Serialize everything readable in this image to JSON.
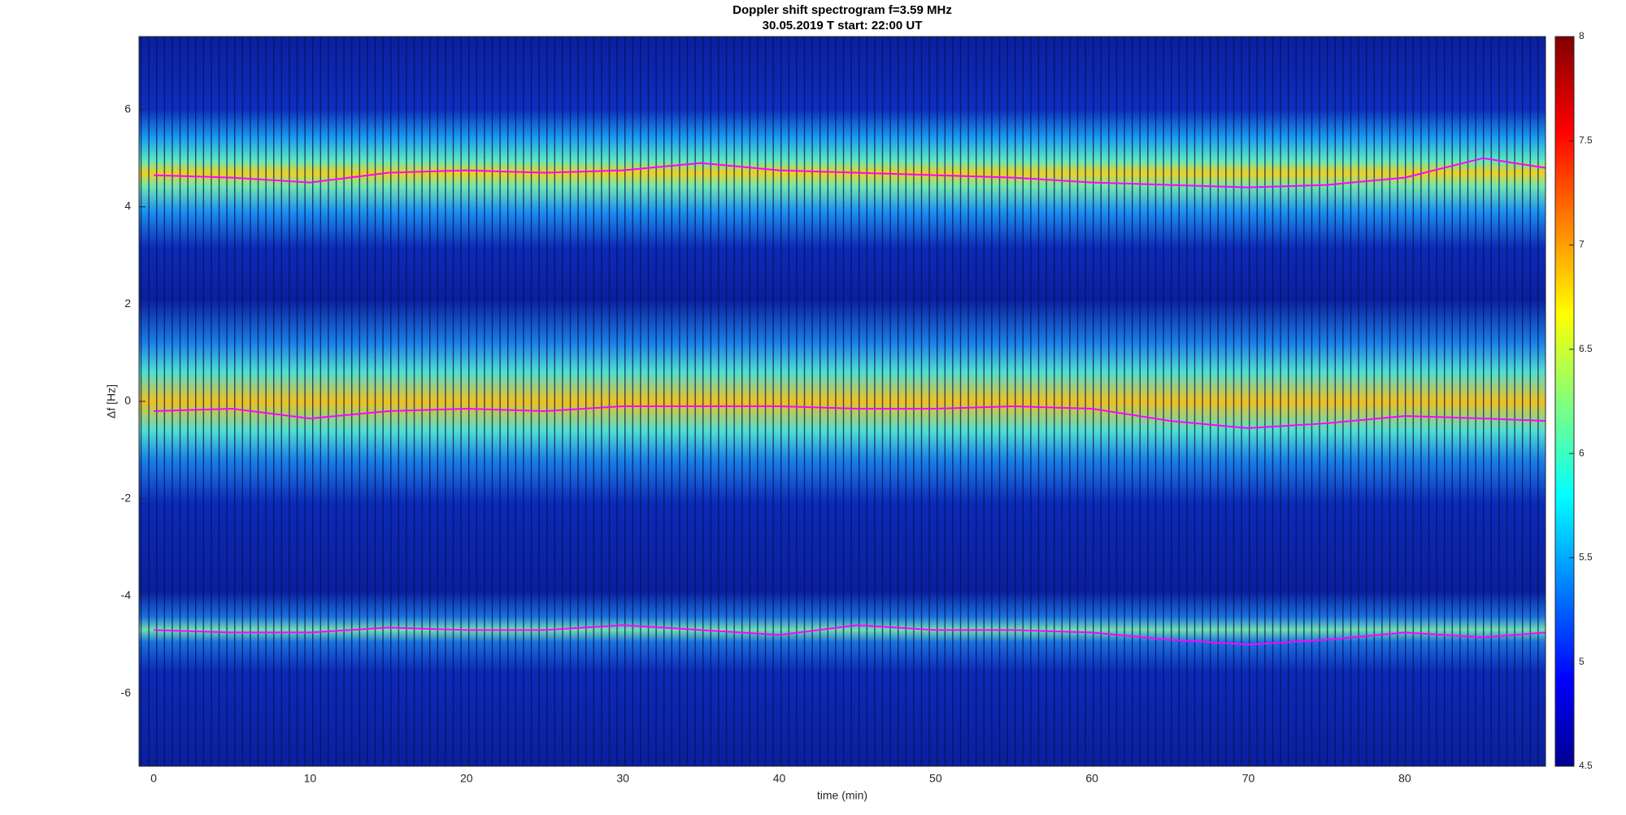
{
  "chart_data": {
    "type": "line",
    "title": "Doppler shift spectrogram f=3.59 MHz",
    "subtitle": "30.05.2019    T start: 22:00 UT",
    "x_label": "time (min)",
    "y_label": "Δf [Hz]",
    "xlim": [
      -0.94,
      89
    ],
    "ylim": [
      -7.5,
      7.5
    ],
    "xticks": [
      0,
      10,
      20,
      30,
      40,
      50,
      60,
      70,
      80
    ],
    "yticks": [
      -6,
      -4,
      -2,
      0,
      2,
      4,
      6
    ],
    "x": [
      0,
      5,
      10,
      15,
      20,
      25,
      30,
      35,
      40,
      45,
      50,
      55,
      60,
      65,
      70,
      75,
      80,
      85,
      89
    ],
    "series": [
      {
        "color": "#ff00ff",
        "values": [
          4.65,
          4.6,
          4.5,
          4.7,
          4.75,
          4.7,
          4.75,
          4.9,
          4.75,
          4.7,
          4.65,
          4.6,
          4.5,
          4.45,
          4.4,
          4.45,
          4.6,
          5.0,
          4.8
        ]
      },
      {
        "color": "#ff00ff",
        "values": [
          -0.2,
          -0.15,
          -0.35,
          -0.2,
          -0.15,
          -0.2,
          -0.1,
          -0.1,
          -0.1,
          -0.15,
          -0.15,
          -0.1,
          -0.15,
          -0.4,
          -0.55,
          -0.45,
          -0.3,
          -0.35,
          -0.4
        ]
      },
      {
        "color": "#ff00ff",
        "values": [
          -4.7,
          -4.75,
          -4.75,
          -4.65,
          -4.7,
          -4.7,
          -4.6,
          -4.7,
          -4.8,
          -4.6,
          -4.7,
          -4.7,
          -4.75,
          -4.9,
          -5.0,
          -4.9,
          -4.75,
          -4.85,
          -4.75
        ]
      }
    ],
    "colorbar": {
      "lim": [
        4.5,
        8
      ],
      "ticks": [
        4.5,
        5,
        5.5,
        6,
        6.5,
        7,
        7.5,
        8
      ]
    }
  }
}
